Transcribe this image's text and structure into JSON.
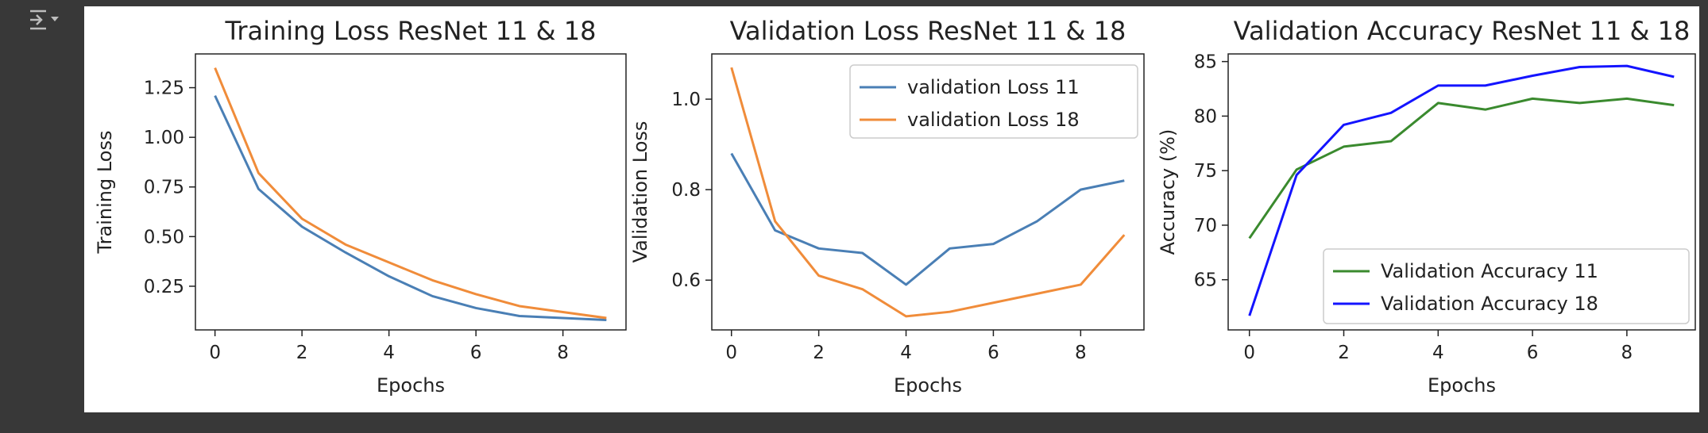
{
  "toolbar": {
    "output_icon": "output-toggle-icon"
  },
  "chart_data": [
    {
      "type": "line",
      "title": "Training Loss ResNet 11 & 18",
      "xlabel": "Epochs",
      "ylabel": "Training Loss",
      "x": [
        0,
        1,
        2,
        3,
        4,
        5,
        6,
        7,
        8,
        9
      ],
      "xticks": [
        "0",
        "2",
        "4",
        "6",
        "8"
      ],
      "yticks": [
        "0.25",
        "0.50",
        "0.75",
        "1.00",
        "1.25"
      ],
      "xlim": [
        -0.45,
        9.45
      ],
      "ylim": [
        0.03,
        1.42
      ],
      "legend": "none",
      "series": [
        {
          "color": "#4a7fb5",
          "values": [
            1.21,
            0.74,
            0.55,
            0.42,
            0.3,
            0.2,
            0.14,
            0.1,
            0.09,
            0.08
          ]
        },
        {
          "color": "#f08c3a",
          "values": [
            1.35,
            0.82,
            0.59,
            0.46,
            0.37,
            0.28,
            0.21,
            0.15,
            0.12,
            0.09
          ]
        }
      ]
    },
    {
      "type": "line",
      "title": "Validation Loss ResNet 11 & 18",
      "xlabel": "Epochs",
      "ylabel": "Validation Loss",
      "x": [
        0,
        1,
        2,
        3,
        4,
        5,
        6,
        7,
        8,
        9
      ],
      "xticks": [
        "0",
        "2",
        "4",
        "6",
        "8"
      ],
      "yticks": [
        "0.6",
        "0.8",
        "1.0"
      ],
      "xlim": [
        -0.45,
        9.45
      ],
      "ylim": [
        0.49,
        1.1
      ],
      "legend": "top-right",
      "series": [
        {
          "name": "validation Loss 11",
          "color": "#4a7fb5",
          "values": [
            0.88,
            0.71,
            0.67,
            0.66,
            0.59,
            0.67,
            0.68,
            0.73,
            0.8,
            0.82
          ]
        },
        {
          "name": "validation Loss 18",
          "color": "#f08c3a",
          "values": [
            1.07,
            0.73,
            0.61,
            0.58,
            0.52,
            0.53,
            0.55,
            0.57,
            0.59,
            0.7
          ]
        }
      ]
    },
    {
      "type": "line",
      "title": "Validation Accuracy ResNet 11 & 18",
      "xlabel": "Epochs",
      "ylabel": "Accuracy (%)",
      "x": [
        0,
        1,
        2,
        3,
        4,
        5,
        6,
        7,
        8,
        9
      ],
      "xticks": [
        "0",
        "2",
        "4",
        "6",
        "8"
      ],
      "yticks": [
        "65",
        "70",
        "75",
        "80",
        "85"
      ],
      "xlim": [
        -0.45,
        9.45
      ],
      "ylim": [
        60.4,
        85.7
      ],
      "legend": "bottom-right",
      "series": [
        {
          "name": "Validation Accuracy 11",
          "color": "#3a8a2e",
          "values": [
            68.8,
            75.1,
            77.2,
            77.7,
            81.2,
            80.6,
            81.6,
            81.2,
            81.6,
            81.0
          ]
        },
        {
          "name": "Validation Accuracy 18",
          "color": "#1414ff",
          "values": [
            61.7,
            74.6,
            79.2,
            80.3,
            82.8,
            82.8,
            83.7,
            84.5,
            84.6,
            83.6
          ]
        }
      ]
    }
  ]
}
